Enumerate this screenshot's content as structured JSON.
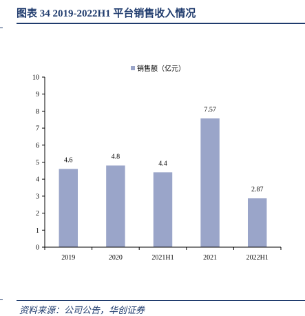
{
  "figure": {
    "title": "图表 34   2019-2022H1 平台销售收入情况",
    "source": "资料来源：公司公告，华创证券"
  },
  "chart_data": {
    "type": "bar",
    "categories": [
      "2019",
      "2020",
      "2021H1",
      "2021",
      "2022H1"
    ],
    "series": [
      {
        "name": "销售额（亿元）",
        "values": [
          4.6,
          4.8,
          4.4,
          7.57,
          2.87
        ],
        "labels": [
          "4.6",
          "4.8",
          "4.4",
          "7.57",
          "2.87"
        ]
      }
    ],
    "ylim": [
      0,
      10
    ],
    "yticks": [
      0,
      1,
      2,
      3,
      4,
      5,
      6,
      7,
      8,
      9,
      10
    ],
    "legend": "top-center",
    "grid": false,
    "bar_color": "#9aa5c9"
  }
}
